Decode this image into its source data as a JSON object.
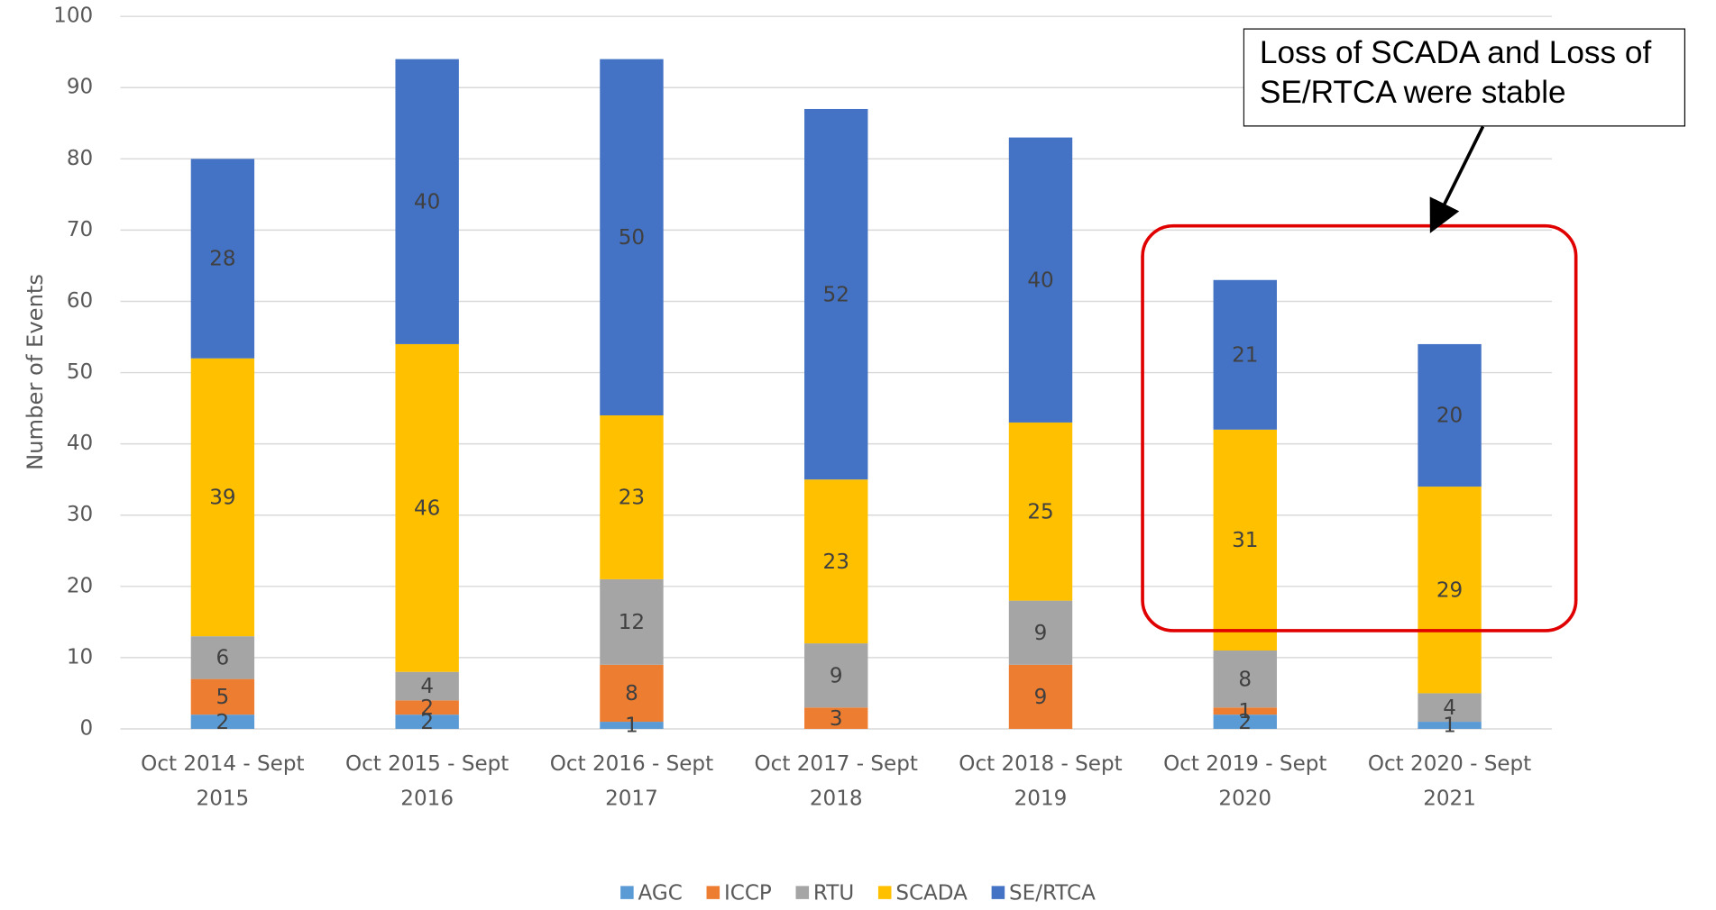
{
  "chart_data": {
    "type": "stacked_bar",
    "y_label": "Number of Events",
    "categories": [
      "Oct 2014 - Sept 2015",
      "Oct 2015 - Sept 2016",
      "Oct 2016 - Sept 2017",
      "Oct 2017 - Sept 2018",
      "Oct 2018 - Sept 2019",
      "Oct 2019 - Sept 2020",
      "Oct 2020 - Sept 2021"
    ],
    "series": [
      {
        "name": "AGC",
        "color": "#5b9bd5",
        "values": [
          2,
          2,
          1,
          null,
          null,
          2,
          1
        ]
      },
      {
        "name": "ICCP",
        "color": "#ed7d31",
        "values": [
          5,
          2,
          8,
          3,
          9,
          1,
          null
        ]
      },
      {
        "name": "RTU",
        "color": "#a5a5a5",
        "values": [
          6,
          4,
          12,
          9,
          9,
          8,
          4
        ]
      },
      {
        "name": "SCADA",
        "color": "#ffc000",
        "values": [
          39,
          46,
          23,
          23,
          25,
          31,
          29
        ]
      },
      {
        "name": "SE/RTCA",
        "color": "#4472c4",
        "values": [
          28,
          40,
          50,
          52,
          40,
          21,
          20
        ]
      }
    ],
    "ylim": [
      0,
      100
    ],
    "yticks": [
      0,
      10,
      20,
      30,
      40,
      50,
      60,
      70,
      80,
      90,
      100
    ],
    "grid": true,
    "legend": "bottom",
    "annotation": "Loss of SCADA and Loss of SE/RTCA were stable"
  }
}
